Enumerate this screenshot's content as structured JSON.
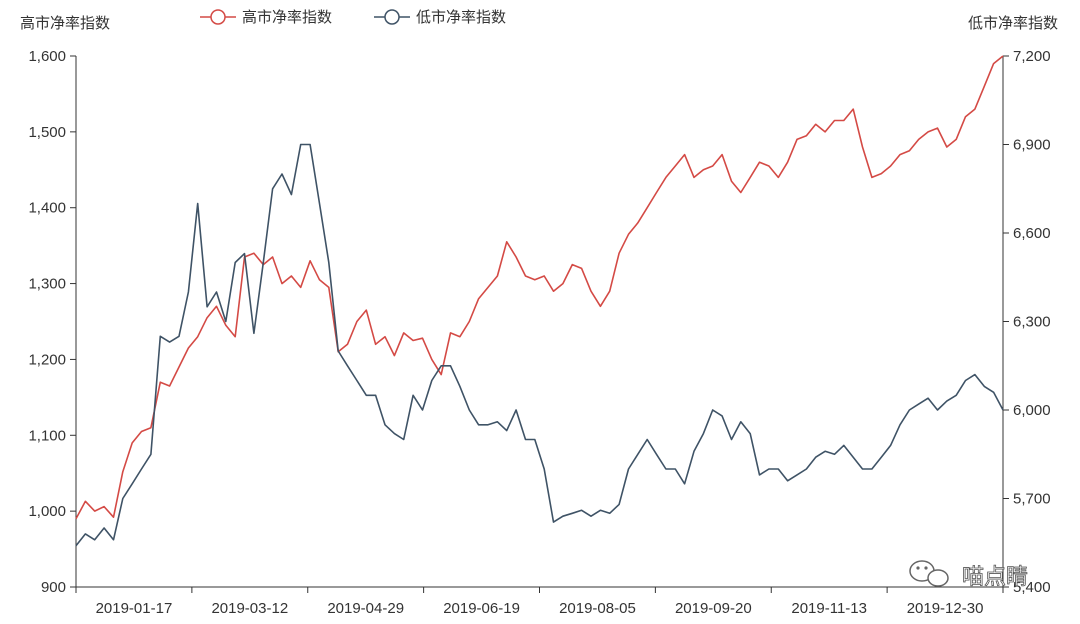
{
  "chart_data": {
    "type": "line",
    "title": "",
    "left_axis_title": "高市净率指数",
    "right_axis_title": "低市净率指数",
    "left_ylim": [
      900,
      1600
    ],
    "left_ticks": [
      "900",
      "1,000",
      "1,100",
      "1,200",
      "1,300",
      "1,400",
      "1,500",
      "1,600"
    ],
    "right_ylim": [
      5400,
      7200
    ],
    "right_ticks": [
      "5,400",
      "5,700",
      "6,000",
      "6,300",
      "6,600",
      "6,900",
      "7,200"
    ],
    "x_ticks": [
      "2019-01-17",
      "2019-03-12",
      "2019-04-29",
      "2019-06-19",
      "2019-08-05",
      "2019-09-20",
      "2019-11-13",
      "2019-12-30"
    ],
    "legend_position": "top",
    "grid": false,
    "series": [
      {
        "name": "高市净率指数",
        "axis": "left",
        "color": "#d44a45",
        "values": [
          990,
          1013,
          1000,
          1006,
          992,
          1052,
          1090,
          1105,
          1110,
          1170,
          1165,
          1190,
          1215,
          1230,
          1255,
          1270,
          1245,
          1230,
          1335,
          1340,
          1325,
          1335,
          1300,
          1310,
          1295,
          1330,
          1305,
          1295,
          1210,
          1220,
          1250,
          1265,
          1220,
          1230,
          1205,
          1235,
          1225,
          1228,
          1200,
          1180,
          1235,
          1230,
          1250,
          1280,
          1295,
          1310,
          1355,
          1335,
          1310,
          1305,
          1310,
          1290,
          1300,
          1325,
          1320,
          1290,
          1270,
          1290,
          1340,
          1365,
          1380,
          1400,
          1420,
          1440,
          1455,
          1470,
          1440,
          1450,
          1455,
          1470,
          1435,
          1420,
          1440,
          1460,
          1455,
          1440,
          1460,
          1490,
          1495,
          1510,
          1500,
          1515,
          1515,
          1530,
          1480,
          1440,
          1445,
          1455,
          1470,
          1475,
          1490,
          1500,
          1505,
          1480,
          1490,
          1520,
          1530,
          1560,
          1590,
          1600
        ]
      },
      {
        "name": "低市净率指数",
        "axis": "right",
        "color": "#3f5366",
        "values": [
          5540,
          5580,
          5560,
          5600,
          5560,
          5700,
          5750,
          5800,
          5850,
          6250,
          6230,
          6250,
          6400,
          6700,
          6350,
          6400,
          6300,
          6500,
          6530,
          6260,
          6500,
          6750,
          6800,
          6730,
          6900,
          6900,
          6700,
          6500,
          6200,
          6150,
          6100,
          6050,
          6050,
          5950,
          5920,
          5900,
          6050,
          6000,
          6100,
          6150,
          6150,
          6080,
          6000,
          5950,
          5950,
          5960,
          5930,
          6000,
          5900,
          5900,
          5800,
          5620,
          5640,
          5650,
          5660,
          5640,
          5660,
          5650,
          5680,
          5800,
          5850,
          5900,
          5850,
          5800,
          5800,
          5750,
          5860,
          5920,
          6000,
          5980,
          5900,
          5960,
          5920,
          5780,
          5800,
          5800,
          5760,
          5780,
          5800,
          5840,
          5860,
          5850,
          5880,
          5840,
          5800,
          5800,
          5840,
          5880,
          5950,
          6000,
          6020,
          6040,
          6000,
          6030,
          6050,
          6100,
          6120,
          6080,
          6060,
          6000
        ]
      }
    ]
  },
  "watermark": "喵点睛"
}
